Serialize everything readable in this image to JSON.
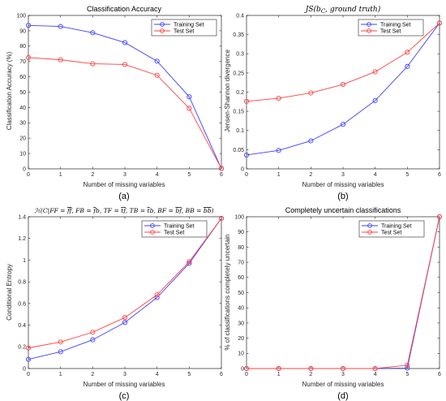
{
  "colors": {
    "training": "#4040ff",
    "test": "#ff4040",
    "axis": "#262626",
    "legend_border": "#262626"
  },
  "chart_data": [
    {
      "type": "line",
      "title": "Classification Accuracy",
      "xlabel": "Number of missing variables",
      "ylabel": "Classification Accuracy (%)",
      "x": [
        0,
        1,
        2,
        3,
        4,
        5,
        6
      ],
      "xlim": [
        0,
        6
      ],
      "ylim": [
        0,
        100
      ],
      "xticks": [
        "0",
        "1",
        "2",
        "3",
        "4",
        "5",
        "6"
      ],
      "yticks": [
        "0",
        "10",
        "20",
        "30",
        "40",
        "50",
        "60",
        "70",
        "80",
        "90",
        "100"
      ],
      "legend": "top-right",
      "series": [
        {
          "name": "Training Set",
          "values": [
            93.5,
            92.8,
            88.7,
            82.3,
            70.2,
            47.0,
            0.2
          ]
        },
        {
          "name": "Test Set",
          "values": [
            72.5,
            71.1,
            68.5,
            68.0,
            61.0,
            39.5,
            0.3
          ]
        }
      ],
      "caption": "(a)"
    },
    {
      "type": "line",
      "title": "JS(b_C, ground truth)",
      "xlabel": "Number of missing variables",
      "ylabel": "Jensen-Shannon divergence",
      "x": [
        0,
        1,
        2,
        3,
        4,
        5,
        6
      ],
      "xlim": [
        0,
        6
      ],
      "ylim": [
        0,
        0.4
      ],
      "xticks": [
        "0",
        "1",
        "2",
        "3",
        "4",
        "5",
        "6"
      ],
      "yticks": [
        "0",
        "0.05",
        "0.1",
        "0.15",
        "0.2",
        "0.25",
        "0.3",
        "0.35",
        "0.4"
      ],
      "legend": "top-left",
      "series": [
        {
          "name": "Training Set",
          "values": [
            0.036,
            0.048,
            0.073,
            0.116,
            0.178,
            0.267,
            0.38
          ]
        },
        {
          "name": "Test Set",
          "values": [
            0.176,
            0.184,
            0.198,
            0.22,
            0.253,
            0.304,
            0.38
          ]
        }
      ],
      "caption": "(b)"
    },
    {
      "type": "line",
      "title": "H(C|FF = f̄f̄, FB = f̄b, TF = t̄f̄, TB = t̄b, BF = b̄f̄, BB = b̄b)",
      "xlabel": "Number of missing variables",
      "ylabel": "Conditional Entropy",
      "x": [
        0,
        1,
        2,
        3,
        4,
        5,
        6
      ],
      "xlim": [
        0,
        6
      ],
      "ylim": [
        0,
        1.4
      ],
      "xticks": [
        "0",
        "1",
        "2",
        "3",
        "4",
        "5",
        "6"
      ],
      "yticks": [
        "0",
        "0.2",
        "0.4",
        "0.6",
        "0.8",
        "1",
        "1.2",
        "1.4"
      ],
      "legend": "top-left",
      "series": [
        {
          "name": "Training Set",
          "values": [
            0.085,
            0.155,
            0.265,
            0.425,
            0.655,
            0.97,
            1.385
          ]
        },
        {
          "name": "Test Set",
          "values": [
            0.19,
            0.245,
            0.335,
            0.47,
            0.68,
            0.985,
            1.385
          ]
        }
      ],
      "caption": "(c)"
    },
    {
      "type": "line",
      "title": "Completely uncertain classifications",
      "xlabel": "Number of missing variables",
      "ylabel": "% of classifications completely uncertain",
      "x": [
        0,
        1,
        2,
        3,
        4,
        5,
        6
      ],
      "xlim": [
        0,
        6
      ],
      "ylim": [
        0,
        100
      ],
      "xticks": [
        "0",
        "1",
        "2",
        "3",
        "4",
        "5",
        "6"
      ],
      "yticks": [
        "0",
        "10",
        "20",
        "30",
        "40",
        "50",
        "60",
        "70",
        "80",
        "90",
        "100"
      ],
      "legend": "top-left",
      "series": [
        {
          "name": "Training Set",
          "values": [
            0,
            0,
            0,
            0,
            0,
            0.3,
            100
          ]
        },
        {
          "name": "Test Set",
          "values": [
            0,
            0,
            0,
            0,
            0,
            2.2,
            100
          ]
        }
      ],
      "caption": "(d)"
    }
  ]
}
